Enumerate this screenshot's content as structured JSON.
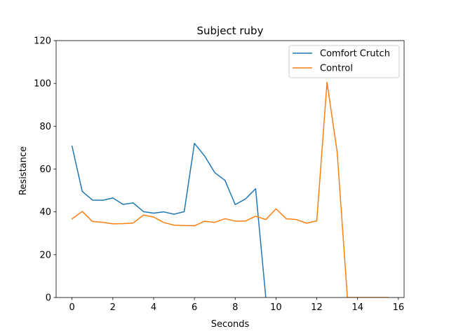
{
  "chart_data": {
    "type": "line",
    "title": "Subject ruby",
    "xlabel": "Seconds",
    "ylabel": "Resistance",
    "xlim": [
      -0.78,
      16.28
    ],
    "ylim": [
      0,
      120
    ],
    "xticks": [
      0,
      2,
      4,
      6,
      8,
      10,
      12,
      14,
      16
    ],
    "yticks": [
      0,
      20,
      40,
      60,
      80,
      100,
      120
    ],
    "legend_position": "upper right",
    "grid": false,
    "series": [
      {
        "name": "Comfort Crutch",
        "color": "#1f77b4",
        "x": [
          0,
          0.5,
          1,
          1.5,
          2,
          2.5,
          3,
          3.5,
          4,
          4.5,
          5,
          5.5,
          6,
          6.5,
          7,
          7.5,
          8,
          8.5,
          9,
          9.5
        ],
        "y": [
          70.7,
          49.6,
          45.5,
          45.4,
          46.5,
          43.5,
          44.2,
          40.1,
          39.4,
          40.0,
          38.9,
          40.1,
          72.0,
          66.1,
          58.3,
          54.7,
          43.4,
          46.0,
          50.8,
          0
        ]
      },
      {
        "name": "Control",
        "color": "#ff7f0e",
        "x": [
          0,
          0.5,
          1,
          1.5,
          2,
          2.5,
          3,
          3.5,
          4,
          4.5,
          5,
          5.5,
          6,
          6.5,
          7,
          7.5,
          8,
          8.5,
          9,
          9.5,
          10,
          10.5,
          11,
          11.5,
          12,
          12.5,
          13,
          13.5,
          14,
          14.5,
          15,
          15.5
        ],
        "y": [
          36.7,
          40.2,
          35.5,
          35.1,
          34.4,
          34.5,
          34.8,
          38.5,
          37.6,
          35.0,
          33.8,
          33.6,
          33.5,
          35.6,
          35.1,
          36.8,
          35.7,
          35.7,
          38.0,
          36.4,
          41.4,
          36.8,
          36.4,
          34.7,
          35.8,
          100.5,
          67.8,
          0,
          0,
          0,
          0,
          0
        ]
      }
    ]
  }
}
